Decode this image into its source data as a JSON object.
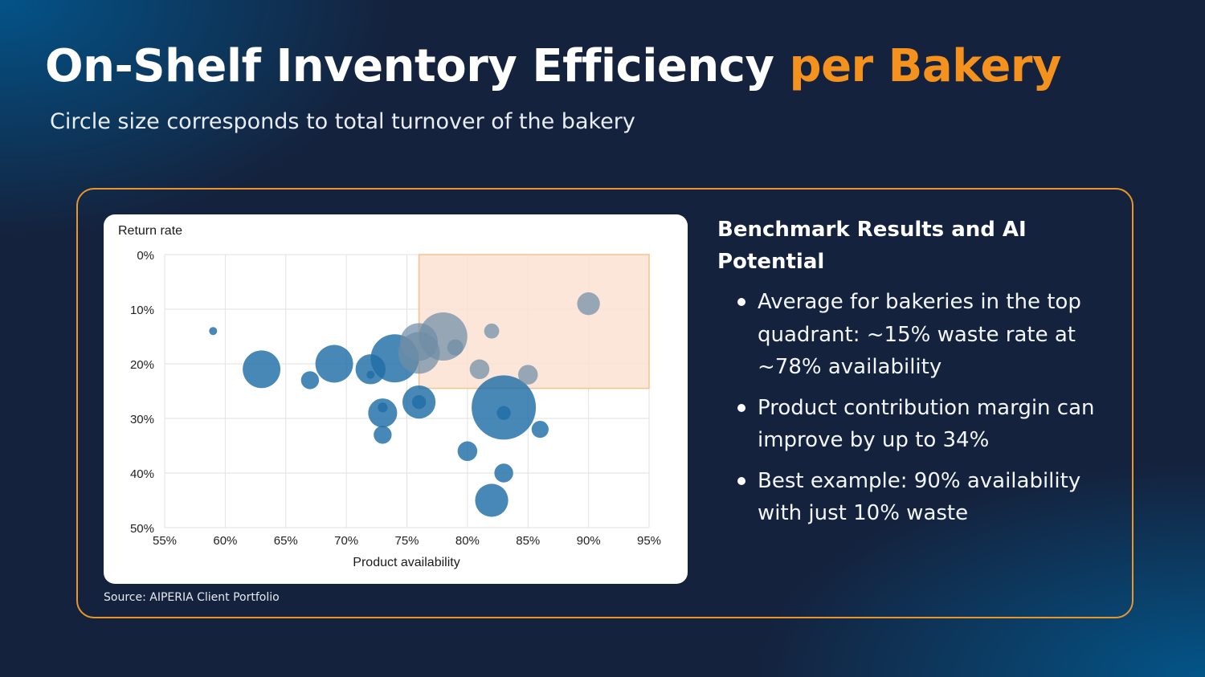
{
  "header": {
    "title_main": "On-Shelf Inventory Efficiency",
    "title_accent": "per Bakery",
    "subtitle": "Circle size corresponds to total turnover of the bakery"
  },
  "colors": {
    "accent": "#f5921e",
    "panel_border": "#e8962a",
    "bubble": "#1f6ea6",
    "bubble_in_zone": "#6f8ea6",
    "highlight_fill": "#fbe1d2",
    "highlight_stroke": "#f0c48f"
  },
  "benchmark": {
    "title": "Benchmark Results and AI Potential",
    "bullets": [
      "Average for bakeries in the top quadrant: ~15% waste rate at ~78% availability",
      "Product contribution margin can improve by up to 34%",
      "Best example: 90% availability with just 10% waste"
    ]
  },
  "source": "Source: AIPERIA Client Portfolio",
  "chart_data": {
    "type": "scatter",
    "subtype": "bubble",
    "xlabel": "Product availability",
    "ylabel": "Return rate",
    "xlim": [
      55,
      95
    ],
    "ylim": [
      0,
      50
    ],
    "y_inverted": true,
    "x_ticks": [
      "55%",
      "60%",
      "65%",
      "70%",
      "75%",
      "80%",
      "85%",
      "90%",
      "95%"
    ],
    "y_ticks": [
      "0%",
      "10%",
      "20%",
      "30%",
      "40%",
      "50%"
    ],
    "grid": true,
    "size_meaning": "total turnover of the bakery (relative)",
    "highlight_region": {
      "x": [
        76,
        95
      ],
      "y": [
        0,
        24.5
      ]
    },
    "points": [
      {
        "x": 59,
        "y": 14,
        "size": 1
      },
      {
        "x": 63,
        "y": 21,
        "size": 22
      },
      {
        "x": 67,
        "y": 23,
        "size": 5
      },
      {
        "x": 69,
        "y": 20,
        "size": 22
      },
      {
        "x": 72,
        "y": 21,
        "size": 14
      },
      {
        "x": 72,
        "y": 22,
        "size": 1
      },
      {
        "x": 74,
        "y": 19,
        "size": 36
      },
      {
        "x": 73,
        "y": 29,
        "size": 13
      },
      {
        "x": 73,
        "y": 28,
        "size": 1.5
      },
      {
        "x": 73,
        "y": 33,
        "size": 5
      },
      {
        "x": 76,
        "y": 18,
        "size": 27
      },
      {
        "x": 76,
        "y": 16,
        "size": 22
      },
      {
        "x": 76,
        "y": 27,
        "size": 17
      },
      {
        "x": 76,
        "y": 27,
        "size": 3
      },
      {
        "x": 78,
        "y": 15,
        "size": 36
      },
      {
        "x": 79,
        "y": 17,
        "size": 4
      },
      {
        "x": 81,
        "y": 21,
        "size": 6
      },
      {
        "x": 82,
        "y": 14,
        "size": 3.5
      },
      {
        "x": 85,
        "y": 22,
        "size": 6
      },
      {
        "x": 83,
        "y": 28,
        "size": 64
      },
      {
        "x": 83,
        "y": 29,
        "size": 3
      },
      {
        "x": 86,
        "y": 32,
        "size": 4.5
      },
      {
        "x": 80,
        "y": 36,
        "size": 6
      },
      {
        "x": 83,
        "y": 40,
        "size": 5.5
      },
      {
        "x": 82,
        "y": 45,
        "size": 17
      },
      {
        "x": 90,
        "y": 9,
        "size": 8
      }
    ]
  }
}
